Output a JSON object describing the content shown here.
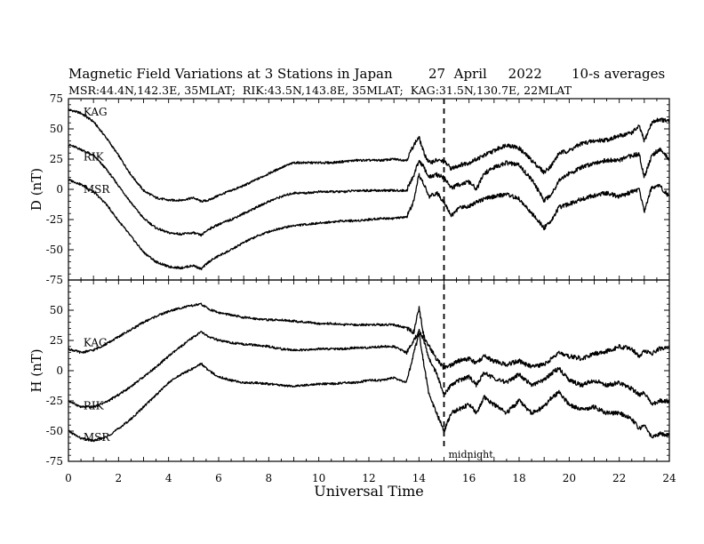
{
  "chart_data": {
    "type": "line",
    "title": "Magnetic Field Variations at 3 Stations in Japan",
    "date": "27  April     2022",
    "averaging": "10-s averages",
    "subtitle": "MSR:44.4N,142.3E, 35MLAT;  RIK:43.5N,143.8E, 35MLAT;  KAG:31.5N,130.7E, 22MLAT",
    "xlabel": "Universal Time",
    "xlim": [
      0,
      24
    ],
    "xticks": [
      0,
      2,
      4,
      6,
      8,
      10,
      12,
      14,
      16,
      18,
      20,
      22,
      24
    ],
    "annotation": {
      "text": "midnight",
      "x": 15
    },
    "panels": [
      {
        "ylabel": "D (nT)",
        "ylim": [
          -75,
          75
        ],
        "yticks": [
          75,
          50,
          25,
          0,
          -25,
          -50,
          -75
        ],
        "series": [
          {
            "name": "KAG",
            "label_x": 0.6,
            "label_y": 64,
            "x": [
              0,
              0.5,
              1,
              1.5,
              2,
              2.5,
              3,
              3.5,
              4,
              4.5,
              5,
              5.3,
              5.6,
              6,
              6.5,
              7,
              7.5,
              8,
              8.5,
              9,
              9.5,
              10,
              10.5,
              11,
              11.5,
              12,
              12.5,
              13,
              13.5,
              13.8,
              14,
              14.2,
              14.4,
              14.7,
              15,
              15.3,
              15.6,
              16,
              16.3,
              16.6,
              17,
              17.5,
              18,
              18.5,
              19,
              19.3,
              19.6,
              20,
              20.5,
              21,
              21.5,
              22,
              22.5,
              22.8,
              23,
              23.3,
              23.6,
              24
            ],
            "y": [
              66,
              63,
              56,
              43,
              28,
              12,
              -1,
              -7,
              -9,
              -9,
              -7,
              -10,
              -9,
              -5,
              -1,
              3,
              8,
              13,
              18,
              22,
              22,
              22,
              22,
              23,
              24,
              24,
              24,
              25,
              24,
              37,
              43,
              30,
              22,
              24,
              23,
              17,
              20,
              22,
              25,
              28,
              32,
              37,
              34,
              24,
              14,
              20,
              30,
              32,
              38,
              40,
              41,
              44,
              47,
              52,
              40,
              55,
              58,
              56
            ]
          },
          {
            "name": "RIK",
            "label_x": 0.6,
            "label_y": 27,
            "x": [
              0,
              0.5,
              1,
              1.5,
              2,
              2.5,
              3,
              3.5,
              4,
              4.5,
              5,
              5.3,
              5.6,
              6,
              6.5,
              7,
              7.5,
              8,
              8.5,
              9,
              9.5,
              10,
              10.5,
              11,
              11.5,
              12,
              12.5,
              13,
              13.5,
              13.8,
              14,
              14.2,
              14.4,
              14.7,
              15,
              15.3,
              15.6,
              16,
              16.3,
              16.6,
              17,
              17.5,
              18,
              18.5,
              19,
              19.3,
              19.6,
              20,
              20.5,
              21,
              21.5,
              22,
              22.5,
              22.8,
              23,
              23.3,
              23.6,
              24
            ],
            "y": [
              37,
              33,
              28,
              17,
              3,
              -11,
              -24,
              -32,
              -36,
              -37,
              -36,
              -38,
              -33,
              -29,
              -25,
              -20,
              -15,
              -10,
              -6,
              -3,
              -3,
              -2,
              -2,
              -2,
              -1,
              -1,
              -1,
              -1,
              -1,
              12,
              24,
              18,
              10,
              12,
              10,
              1,
              4,
              6,
              0,
              13,
              18,
              22,
              20,
              8,
              -9,
              -4,
              8,
              13,
              18,
              22,
              24,
              24,
              28,
              29,
              10,
              28,
              33,
              25
            ]
          },
          {
            "name": "MSR",
            "label_x": 0.6,
            "label_y": 0,
            "x": [
              0,
              0.5,
              1,
              1.5,
              2,
              2.5,
              3,
              3.5,
              4,
              4.5,
              5,
              5.3,
              5.6,
              6,
              6.5,
              7,
              7.5,
              8,
              8.5,
              9,
              9.5,
              10,
              10.5,
              11,
              11.5,
              12,
              12.5,
              13,
              13.5,
              13.8,
              14,
              14.2,
              14.4,
              14.7,
              15,
              15.3,
              15.6,
              16,
              16.3,
              16.6,
              17,
              17.5,
              18,
              18.5,
              19,
              19.3,
              19.6,
              20,
              20.5,
              21,
              21.5,
              22,
              22.5,
              22.8,
              23,
              23.3,
              23.6,
              24
            ],
            "y": [
              8,
              4,
              -2,
              -12,
              -26,
              -39,
              -52,
              -60,
              -64,
              -65,
              -63,
              -66,
              -60,
              -55,
              -50,
              -44,
              -39,
              -35,
              -32,
              -30,
              -29,
              -28,
              -27,
              -26,
              -26,
              -25,
              -24,
              -24,
              -23,
              -10,
              12,
              4,
              -6,
              -3,
              -10,
              -22,
              -15,
              -14,
              -10,
              -8,
              -6,
              -4,
              -8,
              -20,
              -32,
              -25,
              -15,
              -12,
              -8,
              -5,
              -3,
              -6,
              -2,
              0,
              -18,
              2,
              3,
              -6
            ]
          }
        ]
      },
      {
        "ylabel": "H (nT)",
        "ylim": [
          -75,
          75
        ],
        "yticks": [
          50,
          25,
          0,
          -25,
          -50,
          -75
        ],
        "series": [
          {
            "name": "KAG",
            "label_x": 0.6,
            "label_y": 23,
            "x": [
              0,
              0.5,
              1,
              1.5,
              2,
              2.5,
              3,
              3.5,
              4,
              4.5,
              5,
              5.3,
              5.6,
              6,
              6.5,
              7,
              7.5,
              8,
              8.5,
              9,
              9.5,
              10,
              10.5,
              11,
              11.5,
              12,
              12.5,
              13,
              13.5,
              13.8,
              14,
              14.2,
              14.4,
              14.7,
              15,
              15.3,
              15.6,
              16,
              16.3,
              16.6,
              17,
              17.5,
              18,
              18.5,
              19,
              19.3,
              19.6,
              20,
              20.5,
              21,
              21.5,
              22,
              22.5,
              22.8,
              23,
              23.3,
              23.6,
              24
            ],
            "y": [
              18,
              15,
              17,
              22,
              28,
              34,
              40,
              45,
              49,
              52,
              54,
              55,
              51,
              48,
              46,
              44,
              43,
              42,
              42,
              41,
              40,
              39,
              39,
              38,
              38,
              38,
              38,
              38,
              35,
              32,
              52,
              28,
              20,
              10,
              2,
              5,
              8,
              10,
              6,
              12,
              8,
              5,
              8,
              3,
              5,
              10,
              15,
              12,
              10,
              14,
              16,
              20,
              18,
              12,
              17,
              14,
              18,
              20
            ]
          },
          {
            "name": "RIK",
            "label_x": 0.6,
            "label_y": -29,
            "x": [
              0,
              0.5,
              1,
              1.5,
              2,
              2.5,
              3,
              3.5,
              4,
              4.5,
              5,
              5.3,
              5.6,
              6,
              6.5,
              7,
              7.5,
              8,
              8.5,
              9,
              9.5,
              10,
              10.5,
              11,
              11.5,
              12,
              12.5,
              13,
              13.5,
              13.8,
              14,
              14.2,
              14.4,
              14.7,
              15,
              15.3,
              15.6,
              16,
              16.3,
              16.6,
              17,
              17.5,
              18,
              18.5,
              19,
              19.3,
              19.6,
              20,
              20.5,
              21,
              21.5,
              22,
              22.5,
              22.8,
              23,
              23.3,
              23.6,
              24
            ],
            "y": [
              -25,
              -30,
              -30,
              -26,
              -20,
              -13,
              -5,
              3,
              12,
              20,
              28,
              32,
              28,
              25,
              23,
              22,
              21,
              20,
              18,
              17,
              17,
              18,
              18,
              18,
              19,
              19,
              20,
              20,
              15,
              25,
              33,
              25,
              10,
              -2,
              -20,
              -12,
              -8,
              -5,
              -12,
              -2,
              -6,
              -10,
              -3,
              -12,
              -8,
              -2,
              2,
              -8,
              -12,
              -8,
              -12,
              -10,
              -15,
              -20,
              -18,
              -28,
              -25,
              -25
            ]
          },
          {
            "name": "MSR",
            "label_x": 0.6,
            "label_y": -55,
            "x": [
              0,
              0.5,
              1,
              1.5,
              2,
              2.5,
              3,
              3.5,
              4,
              4.5,
              5,
              5.3,
              5.6,
              6,
              6.5,
              7,
              7.5,
              8,
              8.5,
              9,
              9.5,
              10,
              10.5,
              11,
              11.5,
              12,
              12.5,
              13,
              13.5,
              13.8,
              14,
              14.2,
              14.4,
              14.7,
              15,
              15.3,
              15.6,
              16,
              16.3,
              16.6,
              17,
              17.5,
              18,
              18.5,
              19,
              19.3,
              19.6,
              20,
              20.5,
              21,
              21.5,
              22,
              22.5,
              22.8,
              23,
              23.3,
              23.6,
              24
            ],
            "y": [
              -50,
              -56,
              -58,
              -55,
              -48,
              -40,
              -30,
              -20,
              -10,
              -3,
              2,
              6,
              0,
              -5,
              -8,
              -10,
              -10,
              -11,
              -12,
              -13,
              -12,
              -11,
              -11,
              -10,
              -10,
              -8,
              -8,
              -6,
              -10,
              15,
              30,
              5,
              -20,
              -35,
              -50,
              -35,
              -32,
              -28,
              -35,
              -22,
              -28,
              -35,
              -25,
              -35,
              -30,
              -22,
              -18,
              -28,
              -32,
              -30,
              -35,
              -35,
              -40,
              -48,
              -45,
              -55,
              -52,
              -54
            ]
          }
        ]
      }
    ]
  }
}
